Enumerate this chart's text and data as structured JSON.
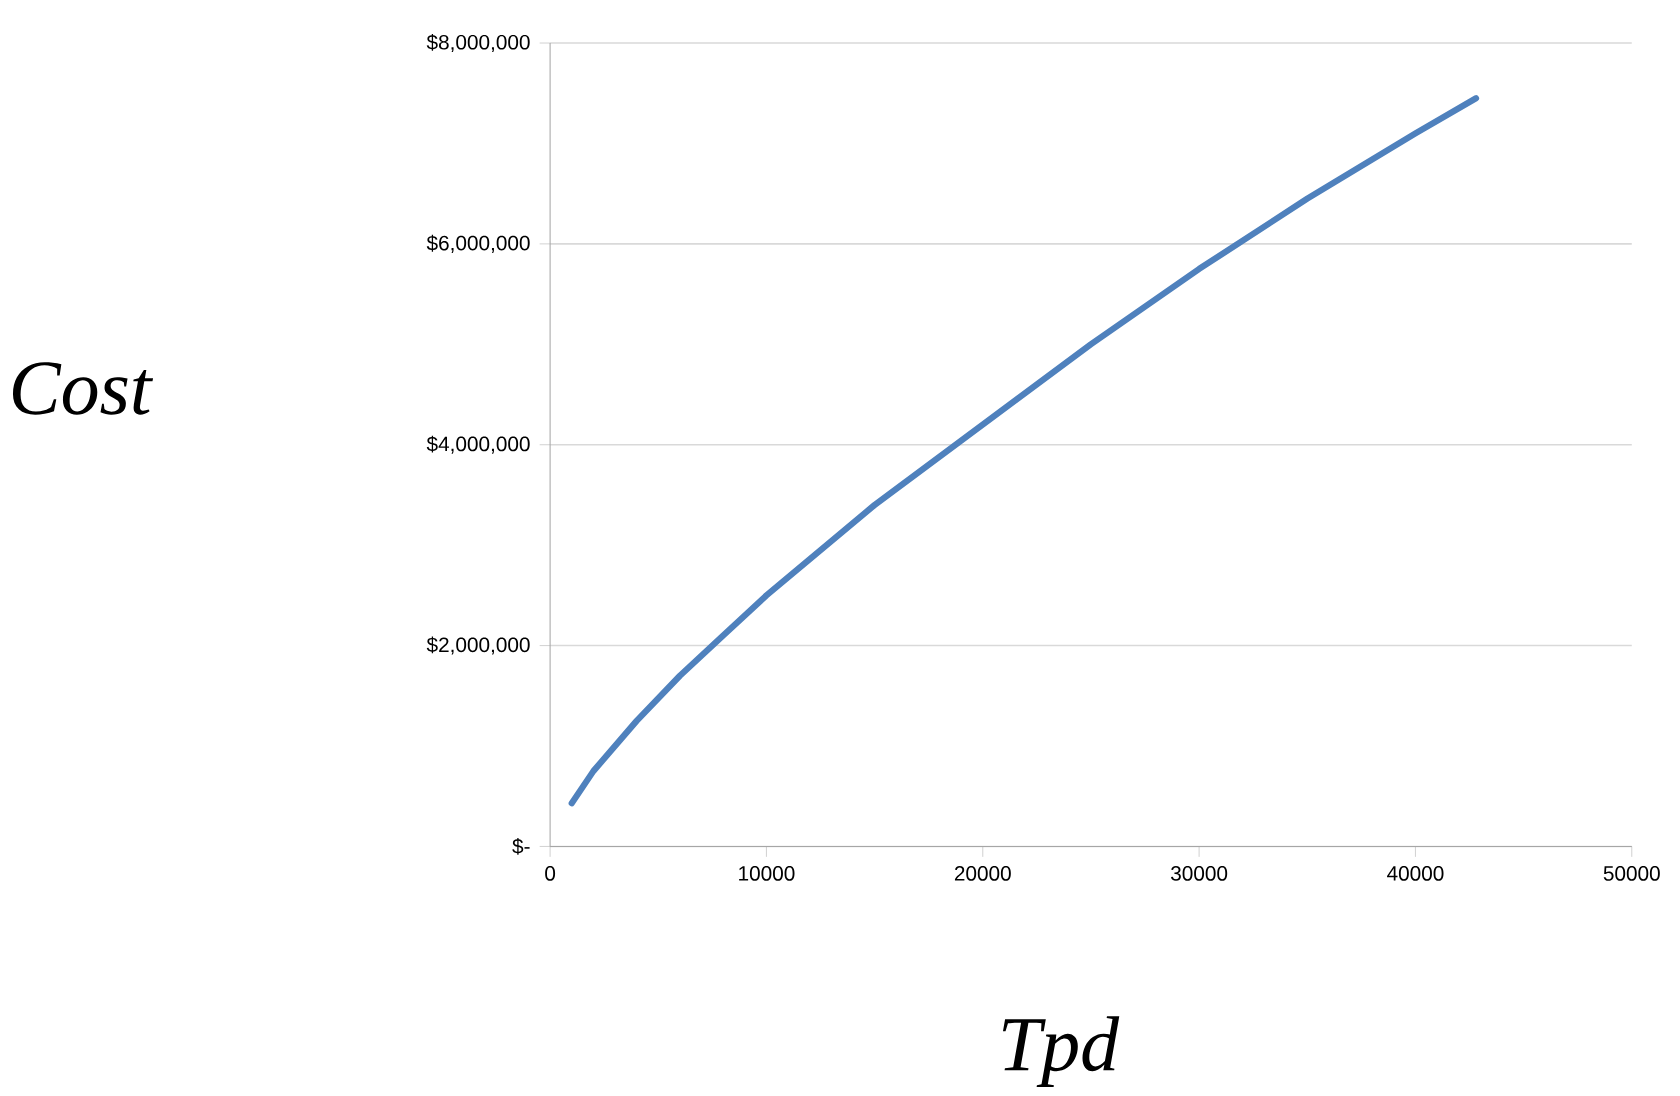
{
  "chart_data": {
    "type": "line",
    "xlabel": "Tpd",
    "ylabel": "Cost",
    "x": [
      1000,
      2000,
      4000,
      6000,
      8000,
      10000,
      15000,
      20000,
      25000,
      30000,
      35000,
      40000,
      42800
    ],
    "series": [
      {
        "color": "#4f81bd",
        "values": [
          430000,
          750000,
          1250000,
          1700000,
          2100000,
          2500000,
          3400000,
          4200000,
          5000000,
          5750000,
          6450000,
          7100000,
          7450000
        ]
      }
    ],
    "xlim": [
      0,
      50000
    ],
    "xticks": [
      0,
      10000,
      20000,
      30000,
      40000,
      50000
    ],
    "ylim": [
      0,
      8000000
    ],
    "yticks": [
      {
        "value": 0,
        "label": "$-"
      },
      {
        "value": 2000000,
        "label": "$2,000,000"
      },
      {
        "value": 4000000,
        "label": "$4,000,000"
      },
      {
        "value": 6000000,
        "label": "$6,000,000"
      },
      {
        "value": 8000000,
        "label": "$8,000,000"
      }
    ],
    "grid": "y",
    "legend": false,
    "marker": "none",
    "line_style": "solid"
  }
}
